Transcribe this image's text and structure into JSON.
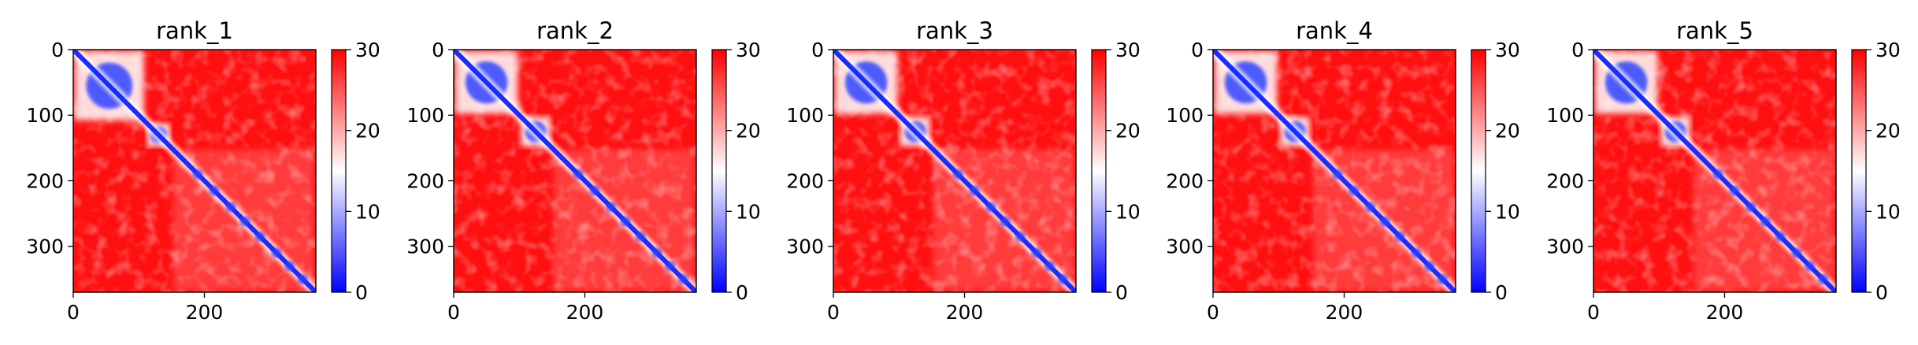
{
  "chart_data": [
    {
      "type": "heatmap",
      "title": "rank_1",
      "xticks": [
        0,
        200
      ],
      "yticks": [
        0,
        100,
        200,
        300
      ],
      "xlim": [
        0,
        370
      ],
      "ylim": [
        370,
        0
      ],
      "colorbar": {
        "ticks": [
          0,
          10,
          20,
          30
        ],
        "range": [
          0,
          30
        ],
        "colormap": [
          "#0000ff",
          "#ffffff",
          "#ff0000"
        ]
      },
      "domains": [
        [
          0,
          110
        ],
        [
          110,
          150
        ],
        [
          150,
          370
        ]
      ]
    },
    {
      "type": "heatmap",
      "title": "rank_2",
      "xticks": [
        0,
        200
      ],
      "yticks": [
        0,
        100,
        200,
        300
      ],
      "xlim": [
        0,
        370
      ],
      "ylim": [
        370,
        0
      ],
      "colorbar": {
        "ticks": [
          0,
          10,
          20,
          30
        ],
        "range": [
          0,
          30
        ],
        "colormap": [
          "#0000ff",
          "#ffffff",
          "#ff0000"
        ]
      },
      "domains": [
        [
          0,
          100
        ],
        [
          100,
          150
        ],
        [
          150,
          370
        ]
      ]
    },
    {
      "type": "heatmap",
      "title": "rank_3",
      "xticks": [
        0,
        200
      ],
      "yticks": [
        0,
        100,
        200,
        300
      ],
      "xlim": [
        0,
        370
      ],
      "ylim": [
        370,
        0
      ],
      "colorbar": {
        "ticks": [
          0,
          10,
          20,
          30
        ],
        "range": [
          0,
          30
        ],
        "colormap": [
          "#0000ff",
          "#ffffff",
          "#ff0000"
        ]
      },
      "domains": [
        [
          0,
          100
        ],
        [
          100,
          150
        ],
        [
          150,
          370
        ]
      ]
    },
    {
      "type": "heatmap",
      "title": "rank_4",
      "xticks": [
        0,
        200
      ],
      "yticks": [
        0,
        100,
        200,
        300
      ],
      "xlim": [
        0,
        370
      ],
      "ylim": [
        370,
        0
      ],
      "colorbar": {
        "ticks": [
          0,
          10,
          20,
          30
        ],
        "range": [
          0,
          30
        ],
        "colormap": [
          "#0000ff",
          "#ffffff",
          "#ff0000"
        ]
      },
      "domains": [
        [
          0,
          100
        ],
        [
          100,
          150
        ],
        [
          150,
          370
        ]
      ]
    },
    {
      "type": "heatmap",
      "title": "rank_5",
      "xticks": [
        0,
        200
      ],
      "yticks": [
        0,
        100,
        200,
        300
      ],
      "xlim": [
        0,
        370
      ],
      "ylim": [
        370,
        0
      ],
      "colorbar": {
        "ticks": [
          0,
          10,
          20,
          30
        ],
        "range": [
          0,
          30
        ],
        "colormap": [
          "#0000ff",
          "#ffffff",
          "#ff0000"
        ]
      },
      "domains": [
        [
          0,
          100
        ],
        [
          100,
          150
        ],
        [
          150,
          370
        ]
      ]
    }
  ]
}
